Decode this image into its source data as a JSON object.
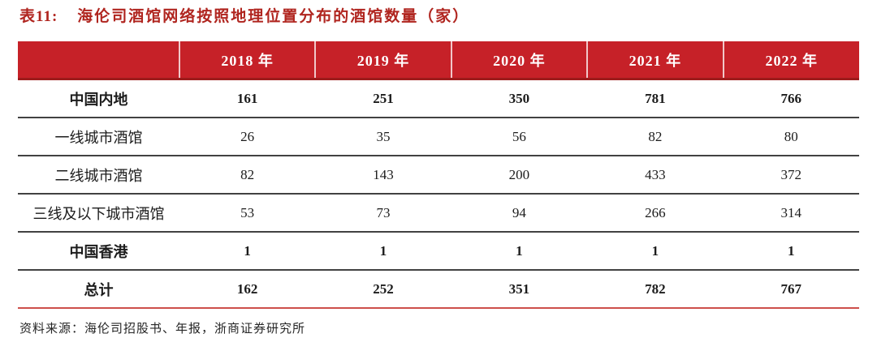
{
  "title": {
    "label": "表11:",
    "text": "海伦司酒馆网络按照地理位置分布的酒馆数量（家）"
  },
  "colors": {
    "header_bg": "#c62128",
    "title_red": "#b0251f",
    "header_underline": "#9c1b1b",
    "row_separator": "#424242",
    "bottom_rule": "#cd4f4b"
  },
  "chart_data": {
    "type": "table",
    "title": "海伦司酒馆网络按照地理位置分布的酒馆数量（家）",
    "columns": [
      "",
      "2018 年",
      "2019 年",
      "2020 年",
      "2021 年",
      "2022 年"
    ],
    "rows": [
      {
        "label": "中国内地",
        "values": [
          "161",
          "251",
          "350",
          "781",
          "766"
        ],
        "bold": true
      },
      {
        "label": "一线城市酒馆",
        "values": [
          "26",
          "35",
          "56",
          "82",
          "80"
        ],
        "bold": false
      },
      {
        "label": "二线城市酒馆",
        "values": [
          "82",
          "143",
          "200",
          "433",
          "372"
        ],
        "bold": false
      },
      {
        "label": "三线及以下城市酒馆",
        "values": [
          "53",
          "73",
          "94",
          "266",
          "314"
        ],
        "bold": false
      },
      {
        "label": "中国香港",
        "values": [
          "1",
          "1",
          "1",
          "1",
          "1"
        ],
        "bold": true
      },
      {
        "label": "总计",
        "values": [
          "162",
          "252",
          "351",
          "782",
          "767"
        ],
        "bold": true
      }
    ]
  },
  "source": "资料来源：海伦司招股书、年报，浙商证券研究所"
}
